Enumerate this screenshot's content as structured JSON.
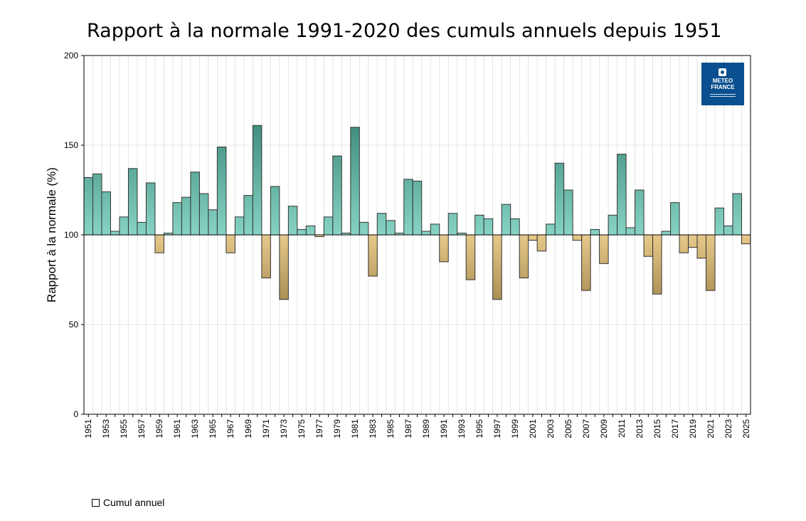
{
  "chart_data": {
    "type": "bar",
    "title": "Rapport à la normale 1991-2020 des cumuls annuels depuis 1951",
    "ylabel": "Rapport à la normale (%)",
    "xlabel": "",
    "ylim": [
      0,
      200
    ],
    "yticks": [
      0,
      50,
      100,
      150,
      200
    ],
    "baseline": 100,
    "grid": true,
    "legend": {
      "label": "Cumul annuel",
      "placement": "bottom-left"
    },
    "colors": {
      "above_light": "#86d3c3",
      "above_dark": "#3d8a7a",
      "below_light": "#e6c98a",
      "below_dark": "#a88c52",
      "edge": "#333333",
      "grid": "#dddddd"
    },
    "x": [
      1951,
      1952,
      1953,
      1954,
      1955,
      1956,
      1957,
      1958,
      1959,
      1960,
      1961,
      1962,
      1963,
      1964,
      1965,
      1966,
      1967,
      1968,
      1969,
      1970,
      1971,
      1972,
      1973,
      1974,
      1975,
      1976,
      1977,
      1978,
      1979,
      1980,
      1981,
      1982,
      1983,
      1984,
      1985,
      1986,
      1987,
      1988,
      1989,
      1990,
      1991,
      1992,
      1993,
      1994,
      1995,
      1996,
      1997,
      1998,
      1999,
      2000,
      2001,
      2002,
      2003,
      2004,
      2005,
      2006,
      2007,
      2008,
      2009,
      2010,
      2011,
      2012,
      2013,
      2014,
      2015,
      2016,
      2017,
      2018,
      2019,
      2020,
      2021,
      2022,
      2023,
      2024,
      2025
    ],
    "x_tick_labels": [
      "1951",
      "1953",
      "1955",
      "1957",
      "1959",
      "1961",
      "1963",
      "1965",
      "1967",
      "1969",
      "1971",
      "1973",
      "1975",
      "1977",
      "1979",
      "1981",
      "1983",
      "1985",
      "1987",
      "1989",
      "1991",
      "1993",
      "1995",
      "1997",
      "1999",
      "2001",
      "2003",
      "2005",
      "2007",
      "2009",
      "2011",
      "2013",
      "2015",
      "2017",
      "2019",
      "2021",
      "2023",
      "2025"
    ],
    "values": [
      132,
      134,
      124,
      102,
      110,
      137,
      107,
      129,
      90,
      101,
      118,
      121,
      135,
      123,
      114,
      149,
      90,
      110,
      122,
      161,
      76,
      127,
      64,
      116,
      103,
      105,
      99,
      110,
      144,
      101,
      160,
      107,
      77,
      112,
      108,
      101,
      131,
      130,
      102,
      106,
      85,
      112,
      101,
      75,
      111,
      109,
      64,
      117,
      109,
      76,
      97,
      91,
      106,
      140,
      125,
      97,
      69,
      103,
      84,
      111,
      145,
      104,
      125,
      88,
      67,
      102,
      118,
      90,
      93,
      87,
      69,
      115,
      105,
      123,
      95
    ]
  },
  "logo": {
    "line1": "METEO",
    "line2": "FRANCE"
  }
}
